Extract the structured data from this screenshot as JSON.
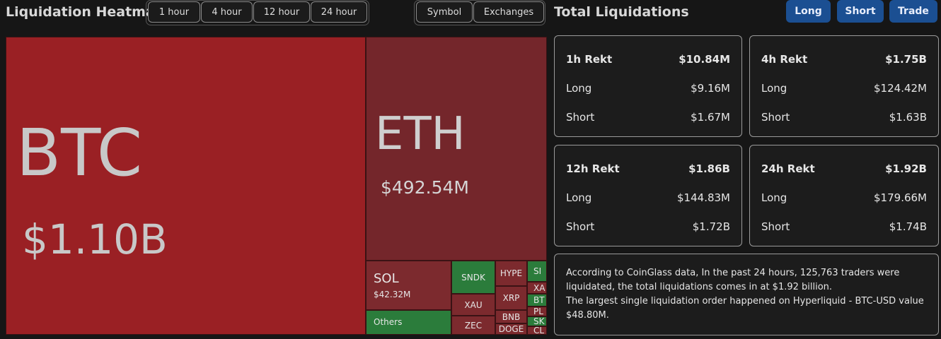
{
  "header": {
    "title": "Liquidation Heatmap",
    "time_buttons": [
      "1 hour",
      "4 hour",
      "12 hour",
      "24 hour"
    ],
    "view_buttons": [
      "Symbol",
      "Exchanges"
    ]
  },
  "heatmap": {
    "tiles": [
      {
        "label": "BTC",
        "value": "$1.10B"
      },
      {
        "label": "ETH",
        "value": "$492.54M"
      },
      {
        "label": "SOL",
        "value": "$42.32M"
      },
      {
        "label": "Others"
      },
      {
        "label": "SNDK"
      },
      {
        "label": "XAU"
      },
      {
        "label": "ZEC"
      },
      {
        "label": "HYPE"
      },
      {
        "label": "XRP"
      },
      {
        "label": "BNB"
      },
      {
        "label": "DOGE"
      },
      {
        "label": "SI"
      },
      {
        "label": "XA"
      },
      {
        "label": "BT"
      },
      {
        "label": "PL"
      },
      {
        "label": "SK"
      },
      {
        "label": "CL"
      }
    ]
  },
  "summary": {
    "title": "Total Liquidations",
    "buttons": [
      "Long",
      "Short",
      "Trade"
    ],
    "cards": [
      {
        "title": "1h Rekt",
        "total": "$10.84M",
        "rows": [
          [
            "Long",
            "$9.16M"
          ],
          [
            "Short",
            "$1.67M"
          ]
        ]
      },
      {
        "title": "4h Rekt",
        "total": "$1.75B",
        "rows": [
          [
            "Long",
            "$124.42M"
          ],
          [
            "Short",
            "$1.63B"
          ]
        ]
      },
      {
        "title": "12h Rekt",
        "total": "$1.86B",
        "rows": [
          [
            "Long",
            "$144.83M"
          ],
          [
            "Short",
            "$1.72B"
          ]
        ]
      },
      {
        "title": "24h Rekt",
        "total": "$1.92B",
        "rows": [
          [
            "Long",
            "$179.66M"
          ],
          [
            "Short",
            "$1.74B"
          ]
        ]
      }
    ],
    "note": [
      "According to CoinGlass data, In the past 24 hours, 125,763 traders were liquidated, the total liquidations comes in at $1.92 billion.",
      "The largest single liquidation order happened on Hyperliquid - BTC-USD value $48.80M."
    ]
  }
}
